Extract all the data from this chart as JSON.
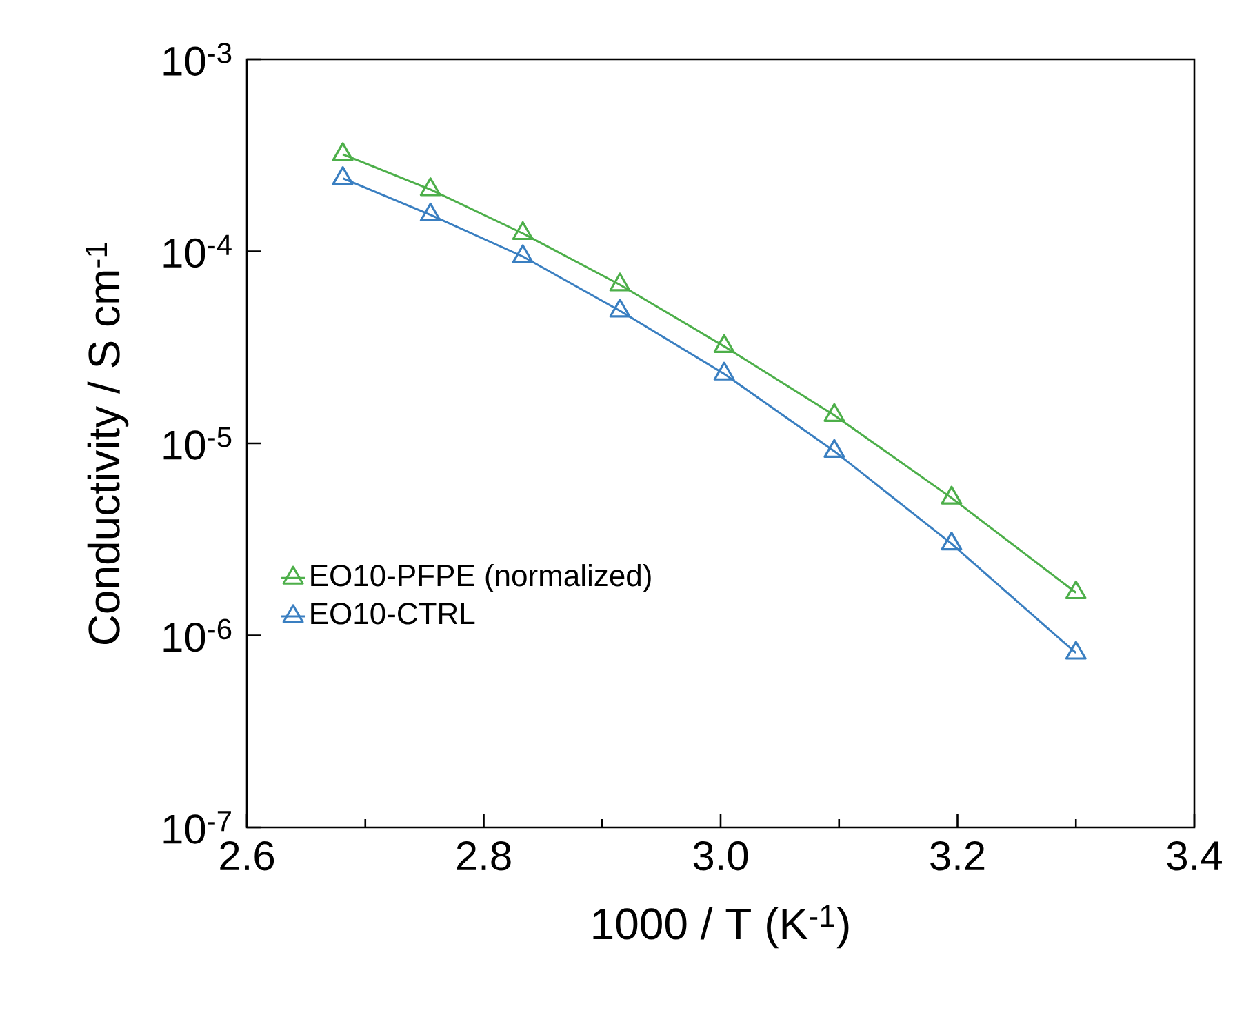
{
  "chart_data": {
    "type": "line",
    "xlabel": "1000 / T (K$^{-1}$)",
    "ylabel": "Conductivity / S cm$^{-1}$",
    "log": "y",
    "xlim": [
      2.6,
      3.4
    ],
    "xticks": [
      {
        "value": 2.6,
        "label": "2.6"
      },
      {
        "value": 2.8,
        "label": "2.8"
      },
      {
        "value": 3.0,
        "label": "3.0"
      },
      {
        "value": 3.2,
        "label": "3.2"
      },
      {
        "value": 3.4,
        "label": "3.4"
      }
    ],
    "ylim": [
      1e-07,
      0.001
    ],
    "yticks": [
      {
        "value": 1e-07,
        "label": "10$^{-7}$"
      },
      {
        "value": 1e-06,
        "label": "10$^{-6}$"
      },
      {
        "value": 1e-05,
        "label": "10$^{-5}$"
      },
      {
        "value": 0.0001,
        "label": "10$^{-4}$"
      },
      {
        "value": 0.001,
        "label": "10$^{-3}$"
      }
    ],
    "marker": "triangle",
    "line_style": "solid",
    "grid": false,
    "legend": "left",
    "x": [
      2.681,
      2.755,
      2.833,
      2.915,
      3.003,
      3.096,
      3.195,
      3.3
    ],
    "series": [
      {
        "name": "EO10-PFPE (normalized)",
        "color": "#4daf4a",
        "values": [
          0.00032,
          0.00021,
          0.000124,
          6.7e-05,
          3.2e-05,
          1.4e-05,
          5.2e-06,
          1.67e-06
        ]
      },
      {
        "name": "EO10-CTRL",
        "color": "#3a7fc1",
        "values": [
          0.00024,
          0.000155,
          9.4e-05,
          4.9e-05,
          2.3e-05,
          9.1e-06,
          3e-06,
          8.1e-07
        ]
      }
    ]
  }
}
